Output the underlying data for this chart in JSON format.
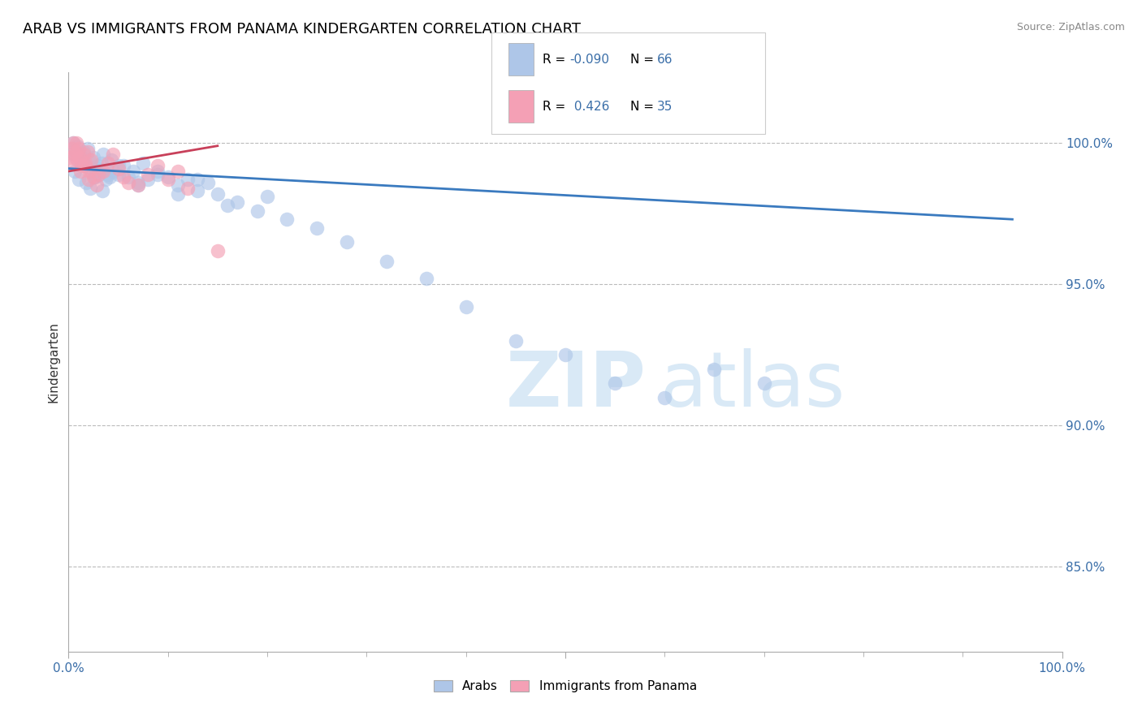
{
  "title": "ARAB VS IMMIGRANTS FROM PANAMA KINDERGARTEN CORRELATION CHART",
  "source": "Source: ZipAtlas.com",
  "ylabel": "Kindergarten",
  "legend_labels": [
    "Arabs",
    "Immigrants from Panama"
  ],
  "legend_R": [
    "-0.090",
    "0.426"
  ],
  "legend_N": [
    "66",
    "35"
  ],
  "blue_color": "#aec6e8",
  "pink_color": "#f4a0b5",
  "blue_line_color": "#3a7abf",
  "pink_line_color": "#c8405a",
  "right_ytick_values": [
    85.0,
    90.0,
    95.0,
    100.0
  ],
  "ylim_min": 82.0,
  "ylim_max": 102.5,
  "xlim_min": 0.0,
  "xlim_max": 100.0,
  "blue_x": [
    0.3,
    0.5,
    0.7,
    0.9,
    1.1,
    1.3,
    1.5,
    1.7,
    1.9,
    2.1,
    2.3,
    2.5,
    2.7,
    2.9,
    3.1,
    3.3,
    3.5,
    3.7,
    3.9,
    4.1,
    4.3,
    4.5,
    5.0,
    5.5,
    6.0,
    6.5,
    7.0,
    7.5,
    8.0,
    9.0,
    10.0,
    11.0,
    12.0,
    13.0,
    14.0,
    15.0,
    17.0,
    19.0,
    22.0,
    25.0,
    28.0,
    32.0,
    36.0,
    40.0,
    45.0,
    50.0,
    55.0,
    60.0,
    65.0,
    70.0,
    0.6,
    1.0,
    1.4,
    1.8,
    2.2,
    2.6,
    3.0,
    3.4,
    4.0,
    5.0,
    7.0,
    9.0,
    11.0,
    13.0,
    16.0,
    20.0
  ],
  "blue_y": [
    99.8,
    100.0,
    99.5,
    99.9,
    99.6,
    99.3,
    99.7,
    99.2,
    99.8,
    99.4,
    99.0,
    99.5,
    98.8,
    99.2,
    98.9,
    99.3,
    99.6,
    98.7,
    99.1,
    98.8,
    99.4,
    99.0,
    98.9,
    99.2,
    98.8,
    99.0,
    98.6,
    99.3,
    98.7,
    98.9,
    98.8,
    98.5,
    98.7,
    98.3,
    98.6,
    98.2,
    97.9,
    97.6,
    97.3,
    97.0,
    96.5,
    95.8,
    95.2,
    94.2,
    93.0,
    92.5,
    91.5,
    91.0,
    92.0,
    91.5,
    99.0,
    98.7,
    99.4,
    98.6,
    98.4,
    98.8,
    99.1,
    98.3,
    98.9,
    99.2,
    98.5,
    99.0,
    98.2,
    98.7,
    97.8,
    98.1
  ],
  "pink_x": [
    0.2,
    0.4,
    0.5,
    0.7,
    0.8,
    1.0,
    1.1,
    1.3,
    1.5,
    1.7,
    1.9,
    2.1,
    2.3,
    2.5,
    2.8,
    3.0,
    3.5,
    4.0,
    4.5,
    5.0,
    5.5,
    6.0,
    7.0,
    8.0,
    9.0,
    10.0,
    11.0,
    12.0,
    0.3,
    0.6,
    0.9,
    1.2,
    1.6,
    2.0,
    15.0
  ],
  "pink_y": [
    99.5,
    99.8,
    100.0,
    99.7,
    100.0,
    99.8,
    99.5,
    99.2,
    99.6,
    99.3,
    99.7,
    99.0,
    99.4,
    98.8,
    98.5,
    98.9,
    99.0,
    99.3,
    99.6,
    99.1,
    98.8,
    98.6,
    98.5,
    98.9,
    99.2,
    98.7,
    99.0,
    98.4,
    99.3,
    99.6,
    99.4,
    99.0,
    99.2,
    98.7,
    96.2
  ],
  "blue_trendline_x": [
    0,
    95
  ],
  "blue_trendline_y": [
    99.1,
    97.3
  ],
  "pink_trendline_x": [
    0,
    15
  ],
  "pink_trendline_y": [
    99.0,
    99.9
  ]
}
